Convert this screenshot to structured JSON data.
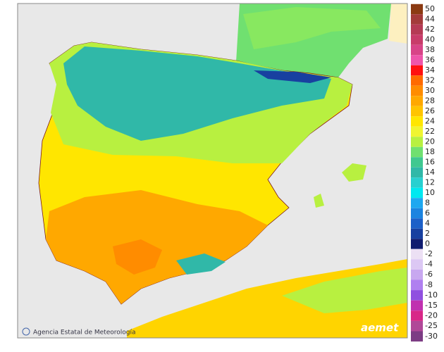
{
  "legend": {
    "positive": [
      {
        "label": 50,
        "color": "#8b3a12"
      },
      {
        "label": 44,
        "color": "#a33a3a"
      },
      {
        "label": 42,
        "color": "#b53a55"
      },
      {
        "label": 40,
        "color": "#c83c6a"
      },
      {
        "label": 38,
        "color": "#d84488"
      },
      {
        "label": 36,
        "color": "#ee55aa"
      },
      {
        "label": 34,
        "color": "#ff1010"
      },
      {
        "label": 32,
        "color": "#ff6a00"
      },
      {
        "label": 30,
        "color": "#ff8c00"
      },
      {
        "label": 28,
        "color": "#ffa800"
      },
      {
        "label": 26,
        "color": "#ffc400"
      },
      {
        "label": 24,
        "color": "#ffe600"
      },
      {
        "label": 22,
        "color": "#f0f530"
      },
      {
        "label": 20,
        "color": "#b8f040"
      },
      {
        "label": 18,
        "color": "#70e070"
      },
      {
        "label": 16,
        "color": "#40c890"
      },
      {
        "label": 14,
        "color": "#30b8a8"
      },
      {
        "label": 12,
        "color": "#28d0d0"
      },
      {
        "label": 10,
        "color": "#00e8f0"
      },
      {
        "label": 8,
        "color": "#1ea8f0"
      },
      {
        "label": 6,
        "color": "#1c84e0"
      },
      {
        "label": 4,
        "color": "#1c60c8"
      },
      {
        "label": 2,
        "color": "#1840a0"
      },
      {
        "label": 0,
        "color": "#101c70"
      }
    ],
    "negative": [
      {
        "label": -2,
        "color": "#ece0f4"
      },
      {
        "label": -4,
        "color": "#dcc8f4"
      },
      {
        "label": -6,
        "color": "#c8a8f0"
      },
      {
        "label": -8,
        "color": "#b080f0"
      },
      {
        "label": -10,
        "color": "#9050e0"
      },
      {
        "label": -15,
        "color": "#c030b0"
      },
      {
        "label": -20,
        "color": "#d82888"
      },
      {
        "label": -25,
        "color": "#b04898"
      },
      {
        "label": -30,
        "color": "#7c3c84"
      }
    ]
  },
  "credit": "Agencia Estatal de Meteorología",
  "logo": "aemet"
}
